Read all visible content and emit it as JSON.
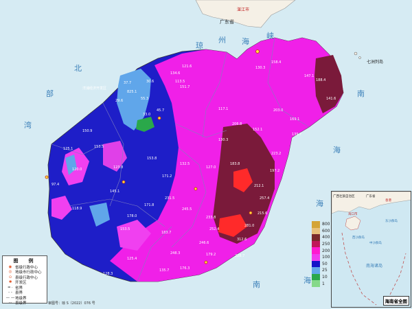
{
  "map": {
    "sea_labels": [
      "北",
      "部",
      "湾",
      "琼",
      "州",
      "海",
      "峡",
      "南",
      "海",
      "南",
      "海",
      "海"
    ],
    "top_region": "广东省",
    "top_city": "湛江市",
    "islands": "七洲列岛",
    "econ_zone": "洋浦经济开发区",
    "values": [
      "37.7",
      "30.6",
      "825.1",
      "55.3",
      "33.0",
      "29.6",
      "45.7",
      "117.1",
      "121.6",
      "113.5",
      "158.4",
      "130.3",
      "151.7",
      "134.6",
      "147.1",
      "203.0",
      "130.3",
      "183.8",
      "206.8",
      "152.1",
      "223.2",
      "197.2",
      "212.1",
      "257.4",
      "215.6",
      "281.0",
      "312.6",
      "231.5",
      "127.0",
      "132.5",
      "153.8",
      "171.2",
      "245.5",
      "233.8",
      "252.4",
      "246.6",
      "171.8",
      "178.0",
      "153.5",
      "183.7",
      "248.3",
      "176.3",
      "135.7",
      "228.7",
      "179.2",
      "123.8",
      "125.1",
      "118.9",
      "150.9",
      "153.5",
      "188.4",
      "141.6",
      "169.1",
      "139.7",
      "120.0",
      "97.4",
      "145.1",
      "125.4",
      "128.3"
    ]
  },
  "legend": {
    "title": "图　例",
    "items": [
      "省级行政中心",
      "地级市行政中心",
      "县级行政中心",
      "开发区",
      "省界",
      "县界",
      "地级界",
      "县级界"
    ]
  },
  "map_number": "审图号：琼 S（2022）076 号",
  "scale": {
    "values": [
      "800",
      "600",
      "400",
      "250",
      "200",
      "100",
      "50",
      "25",
      "10",
      "1"
    ],
    "colors": [
      "#d4a437",
      "#e8c07a",
      "#7a2a2a",
      "#c0185a",
      "#ff1ad0",
      "#f03cf0",
      "#1414c8",
      "#62a8e8",
      "#2aa84a",
      "#86d98a"
    ]
  },
  "inset": {
    "title": "海南省全图",
    "labels": [
      "广西壮族自治区",
      "广东省",
      "香港",
      "海口市",
      "西沙群岛",
      "中沙群岛",
      "东沙群岛",
      "南海诸岛"
    ]
  }
}
